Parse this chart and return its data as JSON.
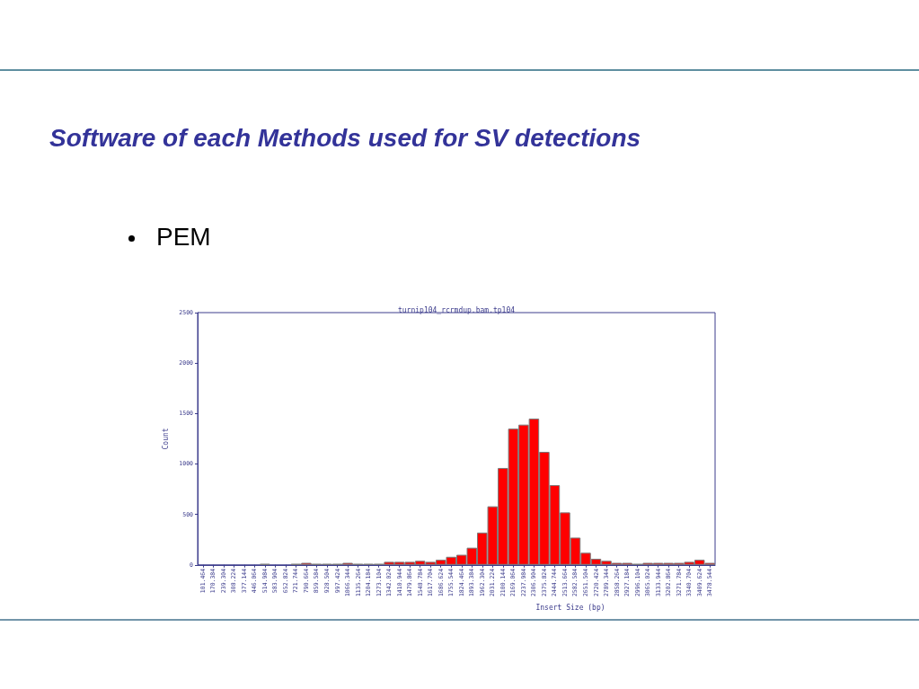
{
  "chart_data": {
    "type": "bar",
    "title": "Software of each Methods used for SV detections",
    "subtitle": "turnip104_rcrmdup.bam.tp104",
    "xlabel": "Insert Size (bp)",
    "ylabel": "Count",
    "annotations": [
      "PEM"
    ],
    "categories": [
      "101.464",
      "170.384",
      "239.304",
      "308.224",
      "377.144",
      "446.064",
      "514.984",
      "583.904",
      "652.824",
      "721.744",
      "790.664",
      "859.584",
      "928.504",
      "997.424",
      "1066.344",
      "1135.264",
      "1204.184",
      "1273.104",
      "1342.024",
      "1410.944",
      "1479.864",
      "1548.784",
      "1617.704",
      "1686.624",
      "1755.544",
      "1824.464",
      "1893.384",
      "1962.304",
      "2031.224",
      "2100.144",
      "2169.064",
      "2237.984",
      "2306.904",
      "2375.824",
      "2444.744",
      "2513.664",
      "2582.584",
      "2651.504",
      "2720.424",
      "2789.344",
      "2858.264",
      "2927.184",
      "2996.104",
      "3065.024",
      "3133.944",
      "3202.864",
      "3271.784",
      "3340.704",
      "3409.624",
      "3478.544"
    ],
    "values": [
      0,
      0,
      0,
      0,
      0,
      0,
      10,
      0,
      0,
      10,
      20,
      10,
      10,
      10,
      20,
      10,
      10,
      10,
      30,
      30,
      30,
      40,
      30,
      50,
      80,
      100,
      170,
      320,
      580,
      960,
      1350,
      1390,
      1450,
      1120,
      790,
      520,
      270,
      120,
      60,
      40,
      20,
      20,
      10,
      20,
      20,
      20,
      20,
      30,
      50,
      20
    ],
    "color": "#ff0000",
    "ylim": [
      0,
      2500
    ],
    "yticks": [
      0,
      500,
      1000,
      1500,
      2000,
      2500
    ],
    "grid": false
  }
}
